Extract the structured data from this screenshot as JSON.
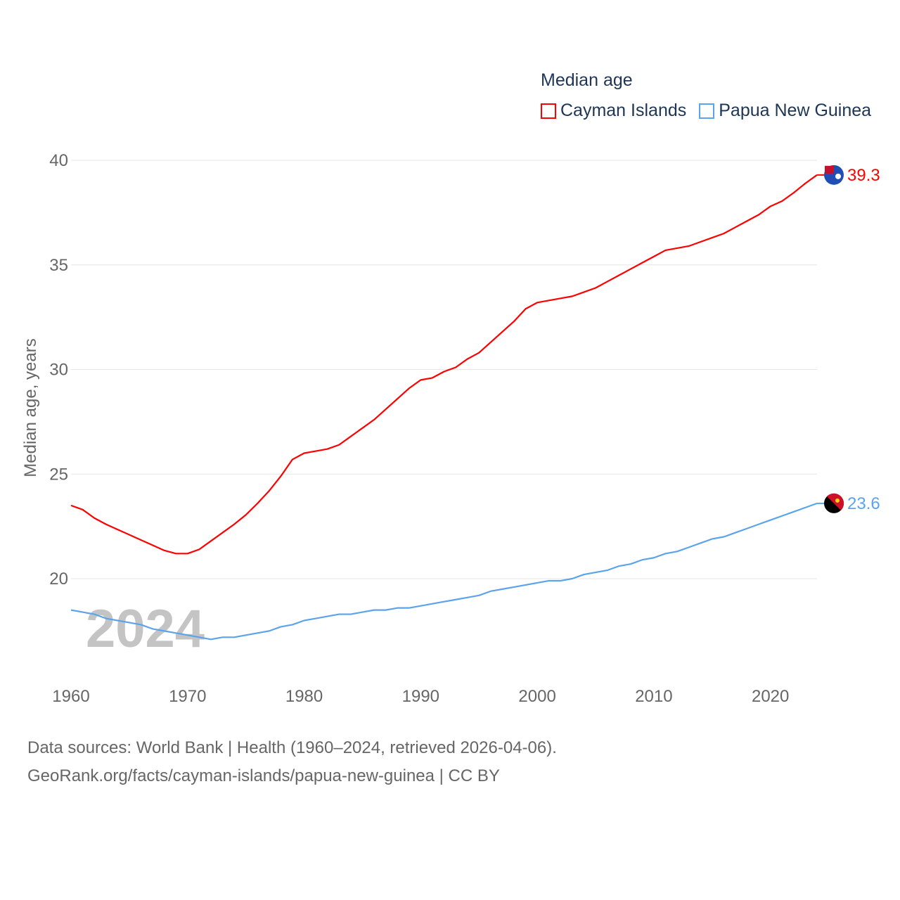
{
  "chart_data": {
    "type": "line",
    "title": "Median age",
    "ylabel": "Median age, years",
    "xlabel": "",
    "ylim": [
      15.6,
      40
    ],
    "xlim": [
      1960,
      2024
    ],
    "yticks": [
      20,
      25,
      30,
      35,
      40
    ],
    "xticks": [
      1960,
      1970,
      1980,
      1990,
      2000,
      2010,
      2020
    ],
    "grid": true,
    "legend_placement": "top-right",
    "year_watermark": "2024",
    "x": [
      1960,
      1961,
      1962,
      1963,
      1964,
      1965,
      1966,
      1967,
      1968,
      1969,
      1970,
      1971,
      1972,
      1973,
      1974,
      1975,
      1976,
      1977,
      1978,
      1979,
      1980,
      1981,
      1982,
      1983,
      1984,
      1985,
      1986,
      1987,
      1988,
      1989,
      1990,
      1991,
      1992,
      1993,
      1994,
      1995,
      1996,
      1997,
      1998,
      1999,
      2000,
      2001,
      2002,
      2003,
      2004,
      2005,
      2006,
      2007,
      2008,
      2009,
      2010,
      2011,
      2012,
      2013,
      2014,
      2015,
      2016,
      2017,
      2018,
      2019,
      2020,
      2021,
      2022,
      2023,
      2024
    ],
    "series": [
      {
        "name": "Cayman Islands",
        "color": "#ff0000",
        "end_label": "39.3",
        "values": [
          23.5,
          23.3,
          22.9,
          22.6,
          22.35,
          22.1,
          21.85,
          21.6,
          21.35,
          21.2,
          21.2,
          21.4,
          21.8,
          22.2,
          22.6,
          23.05,
          23.6,
          24.2,
          24.9,
          25.7,
          26.0,
          26.1,
          26.2,
          26.4,
          26.8,
          27.2,
          27.6,
          28.1,
          28.6,
          29.1,
          29.5,
          29.6,
          29.9,
          30.1,
          30.5,
          30.8,
          31.3,
          31.8,
          32.3,
          32.9,
          33.2,
          33.3,
          33.4,
          33.5,
          33.7,
          33.9,
          34.2,
          34.5,
          34.8,
          35.1,
          35.4,
          35.7,
          35.8,
          35.9,
          36.1,
          36.3,
          36.5,
          36.8,
          37.1,
          37.4,
          37.8,
          38.05,
          38.45,
          38.9,
          39.3
        ]
      },
      {
        "name": "Papua New Guinea",
        "color": "#5ba4ec",
        "end_label": "23.6",
        "values": [
          18.5,
          18.4,
          18.3,
          18.1,
          18.0,
          17.9,
          17.8,
          17.6,
          17.5,
          17.4,
          17.3,
          17.2,
          17.1,
          17.2,
          17.2,
          17.3,
          17.4,
          17.5,
          17.7,
          17.8,
          18.0,
          18.1,
          18.2,
          18.3,
          18.3,
          18.4,
          18.5,
          18.5,
          18.6,
          18.6,
          18.7,
          18.8,
          18.9,
          19.0,
          19.1,
          19.2,
          19.4,
          19.5,
          19.6,
          19.7,
          19.8,
          19.9,
          19.9,
          20.0,
          20.2,
          20.3,
          20.4,
          20.6,
          20.7,
          20.9,
          21.0,
          21.2,
          21.3,
          21.5,
          21.7,
          21.9,
          22.0,
          22.2,
          22.4,
          22.6,
          22.8,
          23.0,
          23.2,
          23.4,
          23.6
        ]
      }
    ]
  },
  "footer": {
    "line1": "Data sources: World Bank | Health (1960–2024, retrieved 2026-04-06).",
    "line2": "GeoRank.org/facts/cayman-islands/papua-new-guinea | CC BY"
  }
}
